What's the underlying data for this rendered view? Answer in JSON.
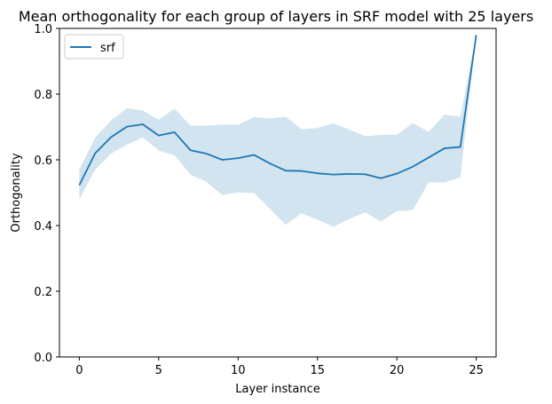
{
  "chart_data": {
    "type": "line",
    "title": "Mean orthogonality for each group of layers in SRF model with 25 layers",
    "xlabel": "Layer instance",
    "ylabel": "Orthogonality",
    "xlim": [
      -1.25,
      26.25
    ],
    "ylim": [
      0.0,
      1.0
    ],
    "xticks": [
      0,
      5,
      10,
      15,
      20,
      25
    ],
    "yticks": [
      0.0,
      0.2,
      0.4,
      0.6,
      0.8,
      1.0
    ],
    "ytick_labels": [
      "0.0",
      "0.2",
      "0.4",
      "0.6",
      "0.8",
      "1.0"
    ],
    "legend_position": "top-left",
    "grid": false,
    "colors": {
      "line": "#1f77b4",
      "band": "#1f77b4"
    },
    "series": [
      {
        "name": "srf",
        "x": [
          0,
          1,
          2,
          3,
          4,
          5,
          6,
          7,
          8,
          9,
          10,
          11,
          12,
          13,
          14,
          15,
          16,
          17,
          18,
          19,
          20,
          21,
          22,
          23,
          24,
          25
        ],
        "y": [
          0.523,
          0.62,
          0.669,
          0.701,
          0.708,
          0.674,
          0.684,
          0.629,
          0.619,
          0.6,
          0.605,
          0.615,
          0.589,
          0.567,
          0.566,
          0.559,
          0.555,
          0.557,
          0.556,
          0.544,
          0.558,
          0.579,
          0.607,
          0.635,
          0.639,
          0.98
        ],
        "lower": [
          0.48,
          0.57,
          0.619,
          0.646,
          0.668,
          0.628,
          0.614,
          0.555,
          0.533,
          0.493,
          0.501,
          0.499,
          0.451,
          0.402,
          0.437,
          0.418,
          0.396,
          0.42,
          0.44,
          0.412,
          0.444,
          0.447,
          0.531,
          0.531,
          0.547,
          0.98
        ],
        "upper": [
          0.57,
          0.668,
          0.72,
          0.757,
          0.75,
          0.722,
          0.756,
          0.704,
          0.704,
          0.707,
          0.707,
          0.73,
          0.726,
          0.731,
          0.693,
          0.697,
          0.711,
          0.692,
          0.672,
          0.676,
          0.676,
          0.712,
          0.685,
          0.738,
          0.731,
          0.98
        ]
      }
    ]
  }
}
